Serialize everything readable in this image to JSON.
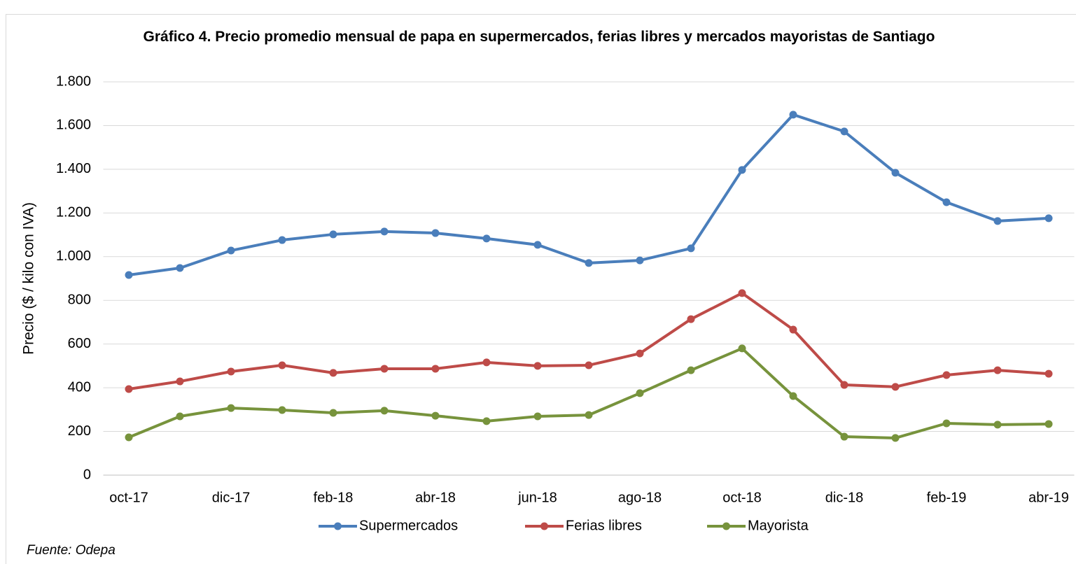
{
  "chart_data": {
    "type": "line",
    "title": "Gráfico 4. Precio promedio mensual de papa en supermercados, ferias libres y mercados mayoristas de Santiago",
    "y_label": "Precio ($ / kilo con IVA)",
    "source": "Fuente: Odepa",
    "categories": [
      "oct-17",
      null,
      "dic-17",
      null,
      "feb-18",
      null,
      "abr-18",
      null,
      "jun-18",
      null,
      "ago-18",
      null,
      "oct-18",
      null,
      "dic-18",
      null,
      "feb-19",
      null,
      "abr-19"
    ],
    "series": [
      {
        "name": "Supermercados",
        "color": "#4a7ebb",
        "values": [
          916,
          948,
          1028,
          1076,
          1102,
          1115,
          1108,
          1083,
          1054,
          971,
          983,
          1038,
          1397,
          1650,
          1573,
          1384,
          1249,
          1163,
          1176
        ]
      },
      {
        "name": "Ferias libres",
        "color": "#be4b48",
        "values": [
          394,
          429,
          474,
          503,
          468,
          487,
          487,
          516,
          500,
          503,
          557,
          714,
          833,
          666,
          413,
          404,
          458,
          480,
          464
        ]
      },
      {
        "name": "Mayorista",
        "color": "#77933c",
        "values": [
          173,
          269,
          307,
          298,
          285,
          295,
          272,
          247,
          269,
          275,
          375,
          480,
          580,
          362,
          176,
          170,
          237,
          231,
          234
        ]
      }
    ],
    "ylim": [
      0,
      1800
    ],
    "yticks": [
      0,
      200,
      400,
      600,
      800,
      {
        "value": 1000,
        "label": "1.000"
      },
      {
        "value": 1200,
        "label": "1.200"
      },
      {
        "value": 1400,
        "label": "1.400"
      },
      {
        "value": 1600,
        "label": "1.600"
      },
      {
        "value": 1800,
        "label": "1.800"
      }
    ],
    "grid": true,
    "legend": "bottom"
  }
}
